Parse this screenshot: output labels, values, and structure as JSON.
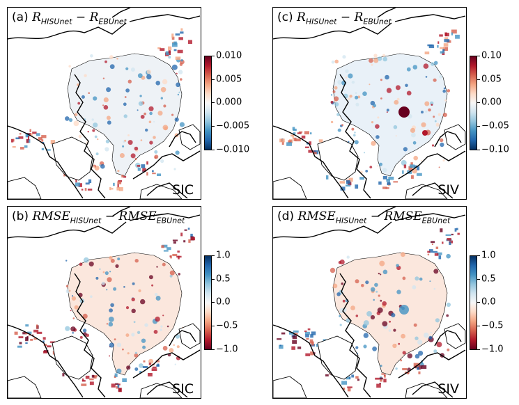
{
  "chart_data": [
    {
      "type": "heatmap",
      "panel_label": "(a)",
      "title_math": {
        "a": "R",
        "a_sub": "HISUnet",
        "op": "−",
        "b": "R",
        "b_sub": "EBUnet"
      },
      "corner_label": "SIC",
      "colormap": "RdBu_r",
      "colorbar": {
        "min": -0.01,
        "max": 0.01,
        "ticks": [
          "0.010",
          "0.005",
          "0.000",
          "−0.005",
          "−0.010"
        ]
      }
    },
    {
      "type": "heatmap",
      "panel_label": "(c)",
      "title_math": {
        "a": "R",
        "a_sub": "HISUnet",
        "op": "−",
        "b": "R",
        "b_sub": "EBUnet"
      },
      "corner_label": "SIV",
      "colormap": "RdBu_r",
      "colorbar": {
        "min": -0.1,
        "max": 0.1,
        "ticks": [
          "0.10",
          "0.05",
          "0.00",
          "−0.05",
          "−0.10"
        ]
      }
    },
    {
      "type": "heatmap",
      "panel_label": "(b)",
      "title_math": {
        "a": "RMSE",
        "a_sub": "HISUnet",
        "op": "−",
        "b": "RMSE",
        "b_sub": "EBUnet"
      },
      "corner_label": "SIC",
      "colormap": "RdBu",
      "colorbar": {
        "min": -1.0,
        "max": 1.0,
        "ticks": [
          "1.0",
          "0.5",
          "0.0",
          "−0.5",
          "−1.0"
        ]
      }
    },
    {
      "type": "heatmap",
      "panel_label": "(d)",
      "title_math": {
        "a": "RMSE",
        "a_sub": "HISUnet",
        "op": "−",
        "b": "RMSE",
        "b_sub": "EBUnet"
      },
      "corner_label": "SIV",
      "colormap": "RdBu",
      "colorbar": {
        "min": -1.0,
        "max": 1.0,
        "ticks": [
          "1.0",
          "0.5",
          "0.0",
          "−0.5",
          "−1.0"
        ]
      }
    }
  ]
}
